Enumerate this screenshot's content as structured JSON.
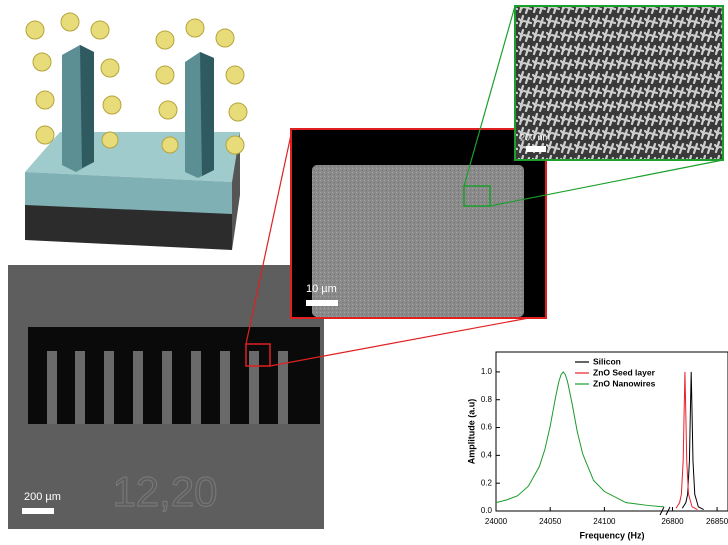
{
  "chart_data": {
    "type": "line",
    "xlabel": "Frequency (Hz)",
    "ylabel": "Amplitude (a.u)",
    "xlim": [
      24000,
      26860
    ],
    "xbreak": [
      24155,
      26795
    ],
    "xticks": [
      24000,
      24050,
      24100,
      26800,
      26850
    ],
    "ylim": [
      0,
      1.1
    ],
    "yticks": [
      {
        "value": 0,
        "label": "0.0"
      },
      {
        "value": 0.2,
        "label": "0.2"
      },
      {
        "value": 0.4,
        "label": "0.4"
      },
      {
        "value": 0.6,
        "label": "0.6"
      },
      {
        "value": 0.8,
        "label": "0.8"
      },
      {
        "value": 1,
        "label": "1.0"
      }
    ],
    "legend": "upper center",
    "series": [
      {
        "name": "Silicon",
        "color": "#000000",
        "x": [
          26811,
          26815,
          26817,
          26819,
          26820,
          26821,
          26822,
          26823,
          26825,
          26829,
          26835
        ],
        "values": [
          0.02,
          0.06,
          0.12,
          0.36,
          0.69,
          1.0,
          0.69,
          0.36,
          0.12,
          0.03,
          0.01
        ]
      },
      {
        "name": "ZnO Seed layer",
        "color": "#e8202a",
        "x": [
          26804,
          26808,
          26810,
          26812,
          26813,
          26814,
          26815,
          26816,
          26818,
          26822,
          26828
        ],
        "values": [
          0.02,
          0.06,
          0.12,
          0.36,
          0.69,
          1.0,
          0.69,
          0.36,
          0.12,
          0.03,
          0.01
        ]
      },
      {
        "name": "ZnO Nanowires",
        "color": "#1a9a2a",
        "x": [
          24000,
          24010,
          24020,
          24030,
          24040,
          24045,
          24050,
          24055,
          24058,
          24060,
          24062,
          24064,
          24066,
          24070,
          24075,
          24080,
          24090,
          24100,
          24120,
          24140,
          24155
        ],
        "values": [
          0.06,
          0.08,
          0.11,
          0.18,
          0.32,
          0.44,
          0.61,
          0.82,
          0.93,
          0.98,
          1.0,
          0.98,
          0.93,
          0.78,
          0.57,
          0.41,
          0.22,
          0.14,
          0.06,
          0.04,
          0.03
        ]
      }
    ]
  },
  "panels": {
    "overview_scale": "200 µm",
    "chip_label": "12,20",
    "zoom_scale": "10 µm",
    "nanowire_scale": "200 nm"
  }
}
